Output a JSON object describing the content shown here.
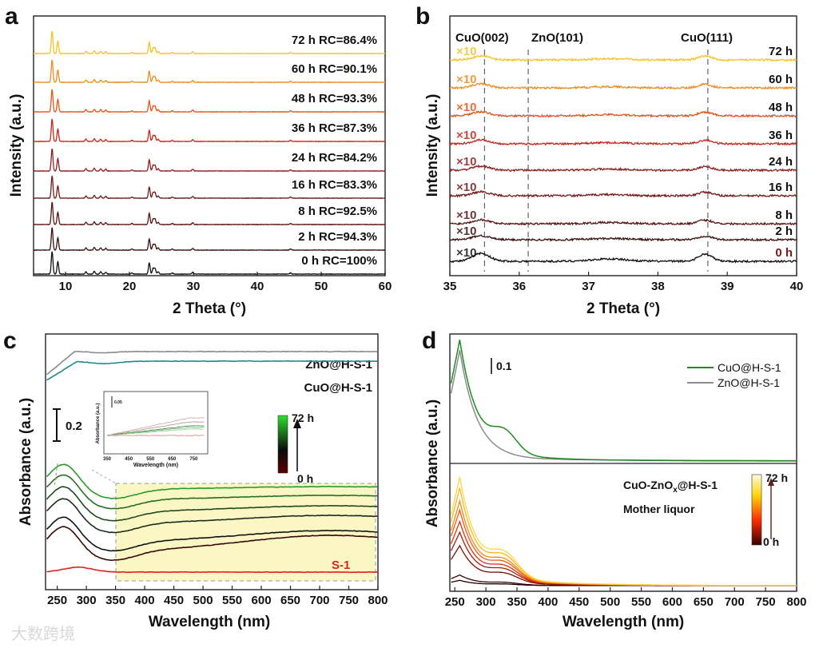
{
  "watermark": "大数跨境",
  "chart_data": [
    {
      "panel": "a",
      "type": "line",
      "xlabel": "2 Theta (°)",
      "ylabel": "Intensity (a.u.)",
      "xlim": [
        5,
        60
      ],
      "xticks": [
        "10",
        "20",
        "30",
        "40",
        "50",
        "60"
      ],
      "grid": false,
      "peaks_2theta": [
        7.9,
        8.8,
        13.2,
        14.5,
        15.5,
        16.3,
        20.4,
        23.1,
        23.7,
        24.0,
        24.5,
        26.7,
        29.9,
        45.2
      ],
      "peak_rel_intensity": [
        1.0,
        0.55,
        0.1,
        0.12,
        0.1,
        0.08,
        0.05,
        0.5,
        0.25,
        0.25,
        0.1,
        0.05,
        0.08,
        0.05
      ],
      "series": [
        {
          "time": "0 h",
          "label": "RC=100%",
          "color": "#111111"
        },
        {
          "time": "2 h",
          "label": "RC=94.3%",
          "color": "#3b1010"
        },
        {
          "time": "8 h",
          "label": "RC=92.5%",
          "color": "#5a1414"
        },
        {
          "time": "16 h",
          "label": "RC=83.3%",
          "color": "#751a1a"
        },
        {
          "time": "24 h",
          "label": "RC=84.2%",
          "color": "#8e2020"
        },
        {
          "time": "36 h",
          "label": "RC=87.3%",
          "color": "#c4281c"
        },
        {
          "time": "48 h",
          "label": "RC=93.3%",
          "color": "#e4561a"
        },
        {
          "time": "60 h",
          "label": "RC=90.1%",
          "color": "#f08b1f"
        },
        {
          "time": "72 h",
          "label": "RC=86.4%",
          "color": "#f5c226"
        }
      ]
    },
    {
      "panel": "b",
      "type": "line",
      "xlabel": "2 Theta (°)",
      "ylabel": "Intensity (a.u.)",
      "xlim": [
        35,
        40
      ],
      "xticks": [
        "35",
        "36",
        "37",
        "38",
        "39",
        "40"
      ],
      "reference_lines": [
        {
          "label": "CuO(002)",
          "x": 35.5
        },
        {
          "label": "ZnO(101)",
          "x": 36.13
        },
        {
          "label": "CuO(111)",
          "x": 38.72
        }
      ],
      "multiplier": "×10",
      "series": [
        {
          "time": "0 h",
          "color": "#111111",
          "time_color": "#7a1a1a"
        },
        {
          "time": "2 h",
          "color": "#3b1010"
        },
        {
          "time": "8 h",
          "color": "#5a1414"
        },
        {
          "time": "16 h",
          "color": "#751a1a"
        },
        {
          "time": "24 h",
          "color": "#8e2020"
        },
        {
          "time": "36 h",
          "color": "#c4281c"
        },
        {
          "time": "48 h",
          "color": "#e4561a"
        },
        {
          "time": "60 h",
          "color": "#f08b1f"
        },
        {
          "time": "72 h",
          "color": "#f5c226"
        }
      ]
    },
    {
      "panel": "c",
      "type": "line",
      "xlabel": "Wavelength (nm)",
      "ylabel": "Absorbance (a.u.)",
      "xlim": [
        230,
        800
      ],
      "xticks": [
        "250",
        "300",
        "350",
        "400",
        "450",
        "500",
        "550",
        "600",
        "650",
        "700",
        "750",
        "800"
      ],
      "scale_bar": "0.2",
      "series_labels": {
        "zno": "ZnO@H-S-1",
        "cuo": "CuO@H-S-1",
        "s1": "S-1"
      },
      "colorbar": {
        "top": "72 h",
        "bottom": "0 h",
        "colors": [
          "#2de02d",
          "#0a0a0a",
          "#5a0000"
        ]
      },
      "inset": {
        "xlabel": "Wavelength (nm)",
        "ylabel": "Absorbance (a.u.)",
        "scale_bar": "0.05",
        "xticks": [
          "350",
          "450",
          "550",
          "650",
          "750"
        ]
      }
    },
    {
      "panel": "d",
      "type": "line",
      "xlabel": "Wavelength (nm)",
      "ylabel": "Absorbance (a.u.)",
      "xlim": [
        242,
        800
      ],
      "xticks": [
        "250",
        "300",
        "350",
        "400",
        "450",
        "500",
        "550",
        "600",
        "650",
        "700",
        "750",
        "800"
      ],
      "scale_bar": "0.1",
      "legend": [
        {
          "label": "CuO@H-S-1",
          "color": "#1e8c1e"
        },
        {
          "label": "ZnO@H-S-1",
          "color": "#8c8c8c"
        }
      ],
      "legend_position": "top-right",
      "bottom_label_main": "CuO-ZnO",
      "bottom_label_sub": "x",
      "bottom_label_tail": "@H-S-1",
      "bottom_label_2": "Mother liquor",
      "colorbar": {
        "top": "72 h",
        "bottom": "0 h",
        "colors": [
          "#fffbe0",
          "#ffd400",
          "#ff2a00",
          "#3a0000"
        ]
      }
    }
  ]
}
